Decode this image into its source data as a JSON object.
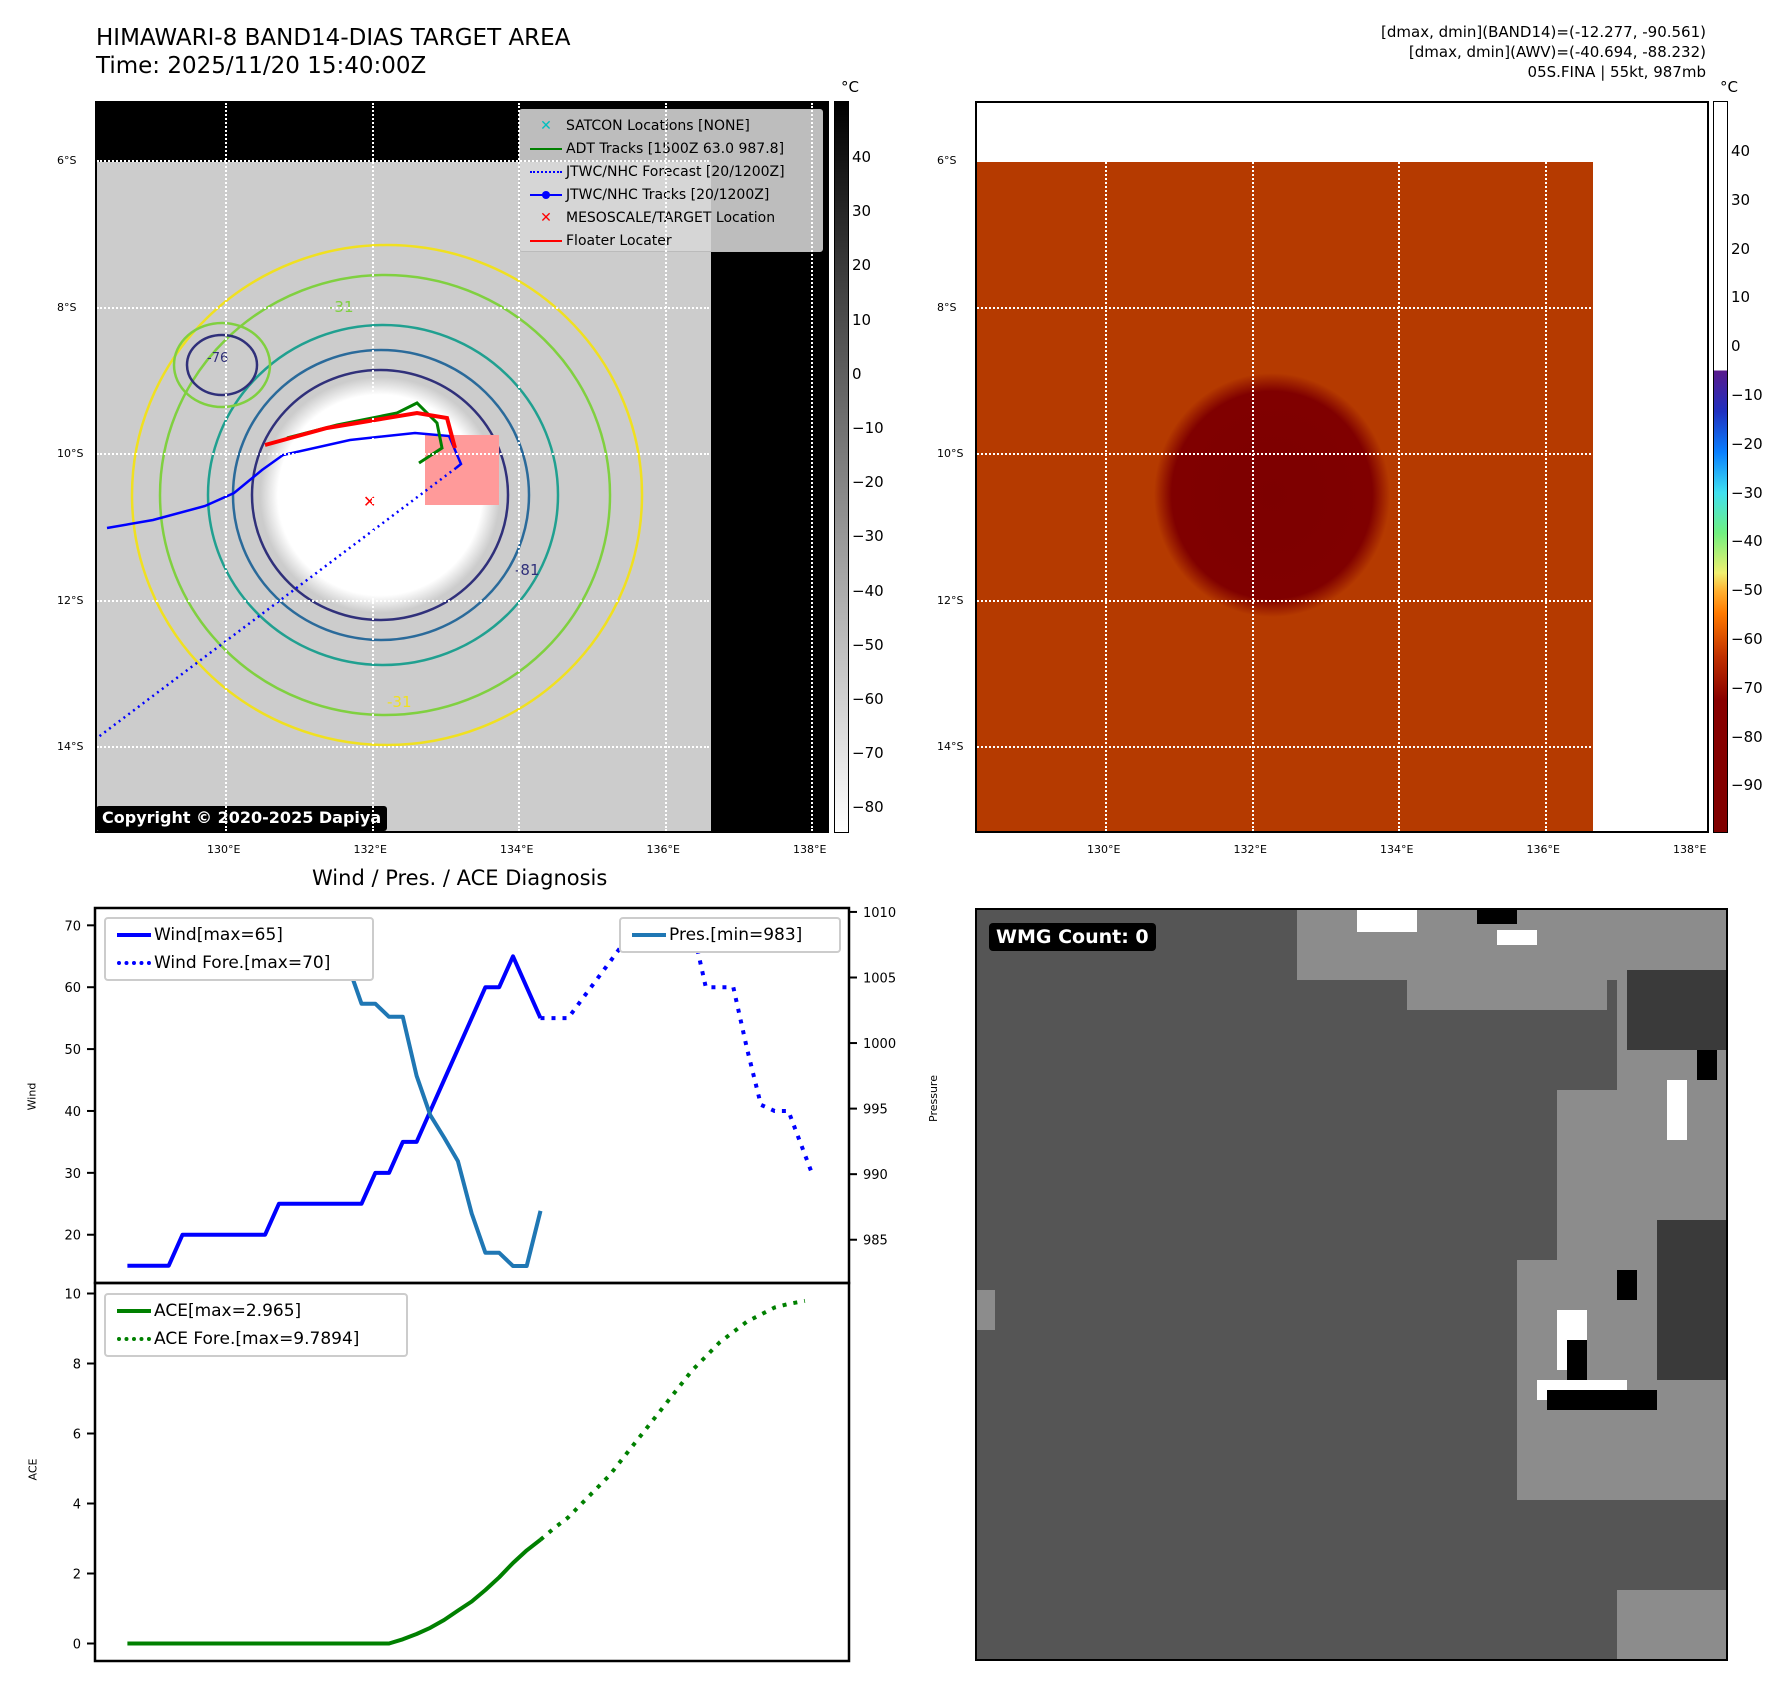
{
  "header": {
    "title": "HIMAWARI-8 BAND14-DIAS TARGET AREA",
    "time": "Time: 2025/11/20 15:40:00Z",
    "stats": [
      "[dmax, dmin](BAND14)=(-12.277, -90.561)",
      "[dmax, dmin](AWV)=(-40.694, -88.232)",
      "05S.FINA | 55kt, 987mb"
    ]
  },
  "maps": {
    "lat_labels": [
      "6°S",
      "8°S",
      "10°S",
      "12°S",
      "14°S"
    ],
    "lon_labels": [
      "130°E",
      "132°E",
      "134°E",
      "136°E",
      "138°E"
    ],
    "unit": "°C",
    "left_colorbar_ticks": [
      "40",
      "30",
      "20",
      "10",
      "0",
      "−10",
      "−20",
      "−30",
      "−40",
      "−50",
      "−60",
      "−70",
      "−80"
    ],
    "right_colorbar_ticks": [
      "40",
      "30",
      "20",
      "10",
      "0",
      "−10",
      "−20",
      "−30",
      "−40",
      "−50",
      "−60",
      "−70",
      "−80",
      "−90"
    ],
    "contour_labels": [
      "-31",
      "-81",
      "-31",
      "-76"
    ],
    "legend": [
      {
        "label": "SATCON Locations [NONE]",
        "color": "#00bfbf"
      },
      {
        "label": "ADT Tracks [1500Z 63.0 987.8]",
        "color": "#008000"
      },
      {
        "label": "JTWC/NHC Forecast [20/1200Z]",
        "color": "#0000ff"
      },
      {
        "label": "JTWC/NHC Tracks [20/1200Z]",
        "color": "#0000ff"
      },
      {
        "label": "MESOSCALE/TARGET Location",
        "color": "#ff0000"
      },
      {
        "label": "Floater Locater",
        "color": "#ff0000"
      }
    ],
    "copyright": "Copyright © 2020-2025 Dapiya"
  },
  "wmg": {
    "label": "WMG Count: 0"
  },
  "chart_data": {
    "type": "line",
    "title": "Wind / Pres. / ACE Diagnosis",
    "x_index_range": [
      -2.35,
      52.4
    ],
    "panels": [
      {
        "ylabel": "Wind",
        "ylim": [
          12.2,
          72.8
        ],
        "yticks": [
          20,
          30,
          40,
          50,
          60,
          70
        ],
        "y2label": "Pressure",
        "y2lim": [
          981.7,
          1010.3
        ],
        "y2ticks": [
          985,
          990,
          995,
          1000,
          1005,
          1010
        ],
        "series": [
          {
            "name": "Wind[max=65]",
            "axis": "left",
            "style": "solid",
            "color": "#0000ff",
            "x": [
              0,
              1,
              2,
              3,
              4,
              5,
              6,
              7,
              8,
              9,
              10,
              11,
              12,
              13,
              14,
              15,
              16,
              17,
              18,
              19,
              20,
              21,
              22,
              23,
              24,
              25,
              26,
              27,
              28,
              29,
              30
            ],
            "values": [
              15,
              15,
              15,
              15,
              20,
              20,
              20,
              20,
              20,
              20,
              20,
              25,
              25,
              25,
              25,
              25,
              25,
              25,
              30,
              30,
              35,
              35,
              40,
              45,
              50,
              55,
              60,
              60,
              65,
              60,
              55
            ]
          },
          {
            "name": "Wind Fore.[max=70]",
            "axis": "left",
            "style": "dotted",
            "color": "#0000ff",
            "x": [
              30,
              31,
              32,
              33,
              34,
              35,
              36,
              37,
              38,
              39,
              40,
              41,
              42,
              43,
              44,
              45,
              46,
              47,
              48,
              49.7
            ],
            "values": [
              55,
              55,
              55,
              58,
              61,
              64,
              67,
              69,
              70,
              70,
              70,
              70,
              60,
              60,
              60,
              50,
              41,
              40,
              40,
              30
            ]
          },
          {
            "name": "Pres.[min=983]",
            "axis": "right",
            "style": "solid",
            "color": "#1f77b4",
            "x": [
              0,
              1,
              2,
              3,
              4,
              5,
              6,
              7,
              8,
              9,
              10,
              11,
              12,
              13,
              14,
              15,
              16,
              17,
              18,
              19,
              20,
              21,
              22,
              23,
              24,
              25,
              26,
              27,
              28,
              29,
              30
            ],
            "values": [
              1009,
              1009,
              1009,
              1009,
              1009,
              1009,
              1009,
              1008,
              1007,
              1007,
              1007,
              1006,
              1006,
              1006,
              1006,
              1006,
              1006,
              1003,
              1003,
              1002,
              1002,
              997.5,
              994.5,
              992.8,
              991,
              987,
              984,
              984,
              983,
              983,
              987.2
            ]
          }
        ],
        "legends": [
          {
            "position": "upper-left",
            "items": [
              "Wind[max=65]",
              "Wind Fore.[max=70]"
            ]
          },
          {
            "position": "upper-right",
            "items": [
              "Pres.[min=983]"
            ]
          }
        ]
      },
      {
        "ylabel": "ACE",
        "ylim": [
          -0.5,
          10.3
        ],
        "yticks": [
          0,
          2,
          4,
          6,
          8,
          10
        ],
        "series": [
          {
            "name": "ACE[max=2.965]",
            "style": "solid",
            "color": "#008000",
            "x": [
              0,
              19,
              20,
              21,
              22,
              23,
              24,
              25,
              26,
              27,
              28,
              29,
              30
            ],
            "values": [
              0,
              0,
              0.12,
              0.27,
              0.45,
              0.67,
              0.94,
              1.2,
              1.53,
              1.89,
              2.3,
              2.66,
              2.965
            ]
          },
          {
            "name": "ACE Fore.[max=9.7894]",
            "style": "dotted",
            "color": "#008000",
            "x": [
              30,
              31,
              32,
              33,
              34,
              35,
              36,
              37,
              38,
              39,
              40,
              41,
              42,
              43,
              44,
              45,
              46,
              47,
              48,
              49.2
            ],
            "values": [
              2.965,
              3.3,
              3.6,
              4.0,
              4.4,
              4.8,
              5.3,
              5.8,
              6.3,
              6.8,
              7.3,
              7.8,
              8.2,
              8.6,
              8.9,
              9.2,
              9.4,
              9.6,
              9.7,
              9.7894
            ]
          }
        ],
        "legends": [
          {
            "position": "upper-left",
            "items": [
              "ACE[max=2.965]",
              "ACE Fore.[max=9.7894]"
            ]
          }
        ]
      }
    ]
  }
}
